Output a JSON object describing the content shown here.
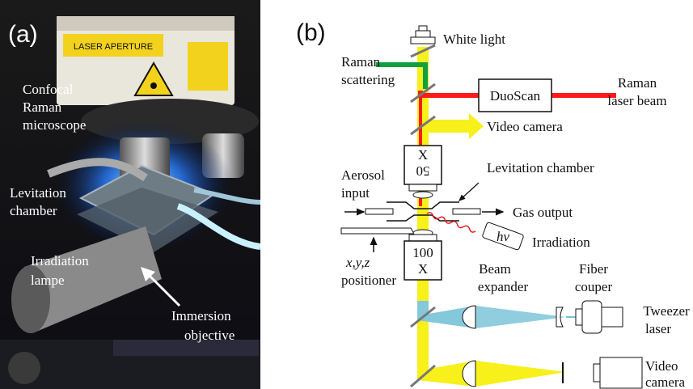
{
  "panel_a": {
    "label": "(a)",
    "aperture_text": "LASER APERTURE",
    "labels": {
      "confocal": [
        "Confocal",
        "Raman",
        "microscope"
      ],
      "levitation": [
        "Levitation",
        "chamber"
      ],
      "irradiation": [
        "Irradiation",
        "lampe"
      ],
      "immersion": [
        "Immersion",
        "objective"
      ]
    }
  },
  "panel_b": {
    "label": "(b)",
    "white_light": "White light",
    "raman_scattering": [
      "Raman",
      "scattering"
    ],
    "duoscan": "DuoScan",
    "raman_laser": [
      "Raman",
      "laser beam"
    ],
    "video_camera_top": "Video camera",
    "objective_50": [
      "X",
      "50"
    ],
    "levitation_chamber": "Levitation chamber",
    "aerosol_input": [
      "Aerosol",
      "input"
    ],
    "gas_output": "Gas output",
    "hv": "hν",
    "irradiation": "Irradiation",
    "positioner": [
      "x,y,z",
      "positioner"
    ],
    "objective_100": [
      "100",
      "X"
    ],
    "beam_expander": [
      "Beam",
      "expander"
    ],
    "fiber_coupler": [
      "Fiber",
      "couper"
    ],
    "tweezer_laser": [
      "Tweezer",
      "laser"
    ],
    "video_camera_bottom": [
      "Video",
      "camera"
    ]
  },
  "colors": {
    "yellow_beam": "#f7f01a",
    "red_beam": "#ff1a1a",
    "green_beam": "#10a040",
    "blue_beam": "#84c8dc",
    "tweezer_line": "#6cc6e0"
  }
}
